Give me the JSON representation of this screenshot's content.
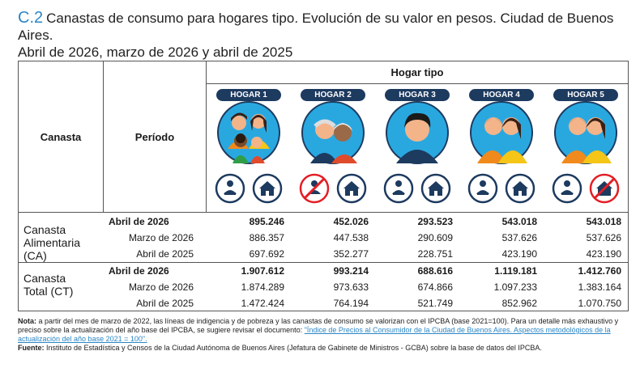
{
  "title": {
    "code": "C.2",
    "line1": "Canastas de consumo para hogares tipo. Evolución de su valor en pesos. Ciudad de Buenos Aires.",
    "line2": "Abril de 2026, marzo de 2026 y abril de 2025"
  },
  "table": {
    "col_canasta": "Canasta",
    "col_periodo": "Período",
    "group_header": "Hogar tipo",
    "hogares": [
      "HOGAR 1",
      "HOGAR 2",
      "HOGAR 3",
      "HOGAR 4",
      "HOGAR 5"
    ],
    "icons": {
      "hogar1": [
        "worker-icon",
        "house-icon"
      ],
      "hogar2": [
        "worker-crossed-icon",
        "house-icon"
      ],
      "hogar3": [
        "worker-icon",
        "house-icon"
      ],
      "hogar4": [
        "worker-icon",
        "house-icon"
      ],
      "hogar5": [
        "worker-icon",
        "house-crossed-icon"
      ]
    },
    "groups": [
      {
        "name_line1": "Canasta",
        "name_line2": "Alimentaria (CA)",
        "rows": [
          {
            "periodo": "Abril de 2026",
            "values": [
              "895.246",
              "452.026",
              "293.523",
              "543.018",
              "543.018"
            ],
            "bold": true
          },
          {
            "periodo": "Marzo de 2026",
            "values": [
              "886.357",
              "447.538",
              "290.609",
              "537.626",
              "537.626"
            ],
            "bold": false
          },
          {
            "periodo": "Abril de 2025",
            "values": [
              "697.692",
              "352.277",
              "228.751",
              "423.190",
              "423.190"
            ],
            "bold": false
          }
        ]
      },
      {
        "name_line1": "Canasta",
        "name_line2": "Total (CT)",
        "rows": [
          {
            "periodo": "Abril de 2026",
            "values": [
              "1.907.612",
              "993.214",
              "688.616",
              "1.119.181",
              "1.412.760"
            ],
            "bold": true
          },
          {
            "periodo": "Marzo de 2026",
            "values": [
              "1.874.289",
              "973.633",
              "674.866",
              "1.097.233",
              "1.383.164"
            ],
            "bold": false
          },
          {
            "periodo": "Abril de 2025",
            "values": [
              "1.472.424",
              "764.194",
              "521.749",
              "852.962",
              "1.070.750"
            ],
            "bold": false
          }
        ]
      }
    ]
  },
  "notes": {
    "nota_label": "Nota:",
    "nota_text": " a partir del mes de marzo de 2022, las líneas de indigencia y de pobreza y las canastas de consumo se valorizan con el IPCBA (base 2021=100). Para un detalle más exhaustivo y preciso sobre la actualización del año base del IPCBA, se sugiere revisar el documento: ",
    "nota_link": "\"Índice de Precios al Consumidor de la Ciudad de Buenos Aires. Aspectos metodológicos de la actualización del año base 2021 = 100\".",
    "fuente_label": "Fuente:",
    "fuente_text": " Instituto de Estadística y Censos de la Ciudad Autónoma de Buenos Aires (Jefatura de Gabinete de Ministros - GCBA) sobre la base de datos del IPCBA."
  },
  "colors": {
    "accent": "#2b86c5",
    "navy": "#1d3a5f",
    "orange": "#f08a1c",
    "cyan": "#29a8e0",
    "red": "#e31e24"
  }
}
